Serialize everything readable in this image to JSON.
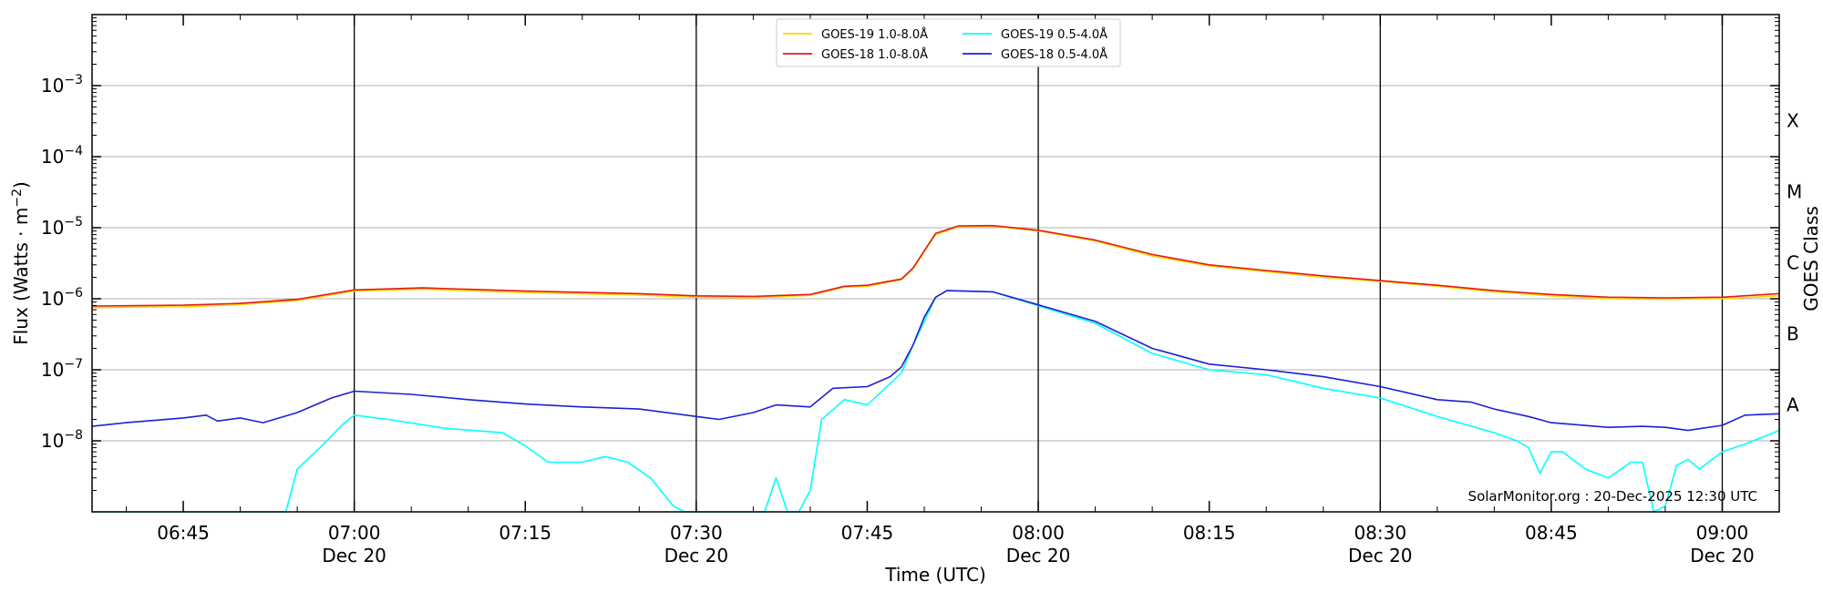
{
  "chart_data": {
    "type": "line",
    "xlabel": "Time (UTC)",
    "ylabel_text": "Flux (Watts · m",
    "ylabel_exp": "−2",
    "ylabel_close": ")",
    "right_label": "GOES Class",
    "credit": "SolarMonitor.org : 20-Dec-2025 12:30 UTC",
    "x_range": [
      "06:37",
      "09:05"
    ],
    "y_range": [
      1e-09,
      0.01
    ],
    "y_scale": "log",
    "y_ticks": [
      {
        "value": 1e-08,
        "base": "10",
        "exp": "−8"
      },
      {
        "value": 1e-07,
        "base": "10",
        "exp": "−7"
      },
      {
        "value": 1e-06,
        "base": "10",
        "exp": "−6"
      },
      {
        "value": 1e-05,
        "base": "10",
        "exp": "−5"
      },
      {
        "value": 0.0001,
        "base": "10",
        "exp": "−4"
      },
      {
        "value": 0.001,
        "base": "10",
        "exp": "−3"
      }
    ],
    "x_ticks": [
      {
        "time": "06:45",
        "label": "06:45",
        "sub": ""
      },
      {
        "time": "07:00",
        "label": "07:00",
        "sub": "Dec 20"
      },
      {
        "time": "07:15",
        "label": "07:15",
        "sub": ""
      },
      {
        "time": "07:30",
        "label": "07:30",
        "sub": "Dec 20"
      },
      {
        "time": "07:45",
        "label": "07:45",
        "sub": ""
      },
      {
        "time": "08:00",
        "label": "08:00",
        "sub": "Dec 20"
      },
      {
        "time": "08:15",
        "label": "08:15",
        "sub": ""
      },
      {
        "time": "08:30",
        "label": "08:30",
        "sub": "Dec 20"
      },
      {
        "time": "08:45",
        "label": "08:45",
        "sub": ""
      },
      {
        "time": "09:00",
        "label": "09:00",
        "sub": "Dec 20"
      }
    ],
    "vertical_lines": [
      "07:00",
      "07:30",
      "08:00",
      "08:30",
      "09:00"
    ],
    "goes_classes": [
      {
        "label": "A",
        "value": 1e-08
      },
      {
        "label": "B",
        "value": 1e-07
      },
      {
        "label": "C",
        "value": 1e-06
      },
      {
        "label": "M",
        "value": 1e-05
      },
      {
        "label": "X",
        "value": 0.0001
      }
    ],
    "grid": "horizontal at major ticks",
    "legend_position": "top-center",
    "series": [
      {
        "name": "GOES-19 1.0-8.0Å",
        "color": "#FFD700",
        "points": [
          [
            "06:37",
            7.5e-07
          ],
          [
            "06:45",
            7.7e-07
          ],
          [
            "06:50",
            8.3e-07
          ],
          [
            "06:55",
            9.4e-07
          ],
          [
            "07:00",
            1.28e-06
          ],
          [
            "07:06",
            1.36e-06
          ],
          [
            "07:15",
            1.22e-06
          ],
          [
            "07:25",
            1.13e-06
          ],
          [
            "07:30",
            1.05e-06
          ],
          [
            "07:35",
            1.03e-06
          ],
          [
            "07:40",
            1.12e-06
          ],
          [
            "07:43",
            1.45e-06
          ],
          [
            "07:45",
            1.5e-06
          ],
          [
            "07:48",
            1.85e-06
          ],
          [
            "07:49",
            2.6e-06
          ],
          [
            "07:51",
            8e-06
          ],
          [
            "07:53",
            1.03e-05
          ],
          [
            "07:56",
            1.05e-05
          ],
          [
            "08:00",
            9e-06
          ],
          [
            "08:05",
            6.5e-06
          ],
          [
            "08:10",
            4e-06
          ],
          [
            "08:15",
            2.9e-06
          ],
          [
            "08:20",
            2.4e-06
          ],
          [
            "08:25",
            2e-06
          ],
          [
            "08:30",
            1.75e-06
          ],
          [
            "08:35",
            1.5e-06
          ],
          [
            "08:40",
            1.25e-06
          ],
          [
            "08:45",
            1.1e-06
          ],
          [
            "08:50",
            1e-06
          ],
          [
            "08:55",
            9.8e-07
          ],
          [
            "09:00",
            1e-06
          ],
          [
            "09:05",
            1.1e-06
          ]
        ]
      },
      {
        "name": "GOES-18 1.0-8.0Å",
        "color": "#E31A1C",
        "points": [
          [
            "06:37",
            7.9e-07
          ],
          [
            "06:45",
            8.1e-07
          ],
          [
            "06:50",
            8.6e-07
          ],
          [
            "06:55",
            9.8e-07
          ],
          [
            "07:00",
            1.33e-06
          ],
          [
            "07:06",
            1.42e-06
          ],
          [
            "07:15",
            1.28e-06
          ],
          [
            "07:25",
            1.18e-06
          ],
          [
            "07:30",
            1.1e-06
          ],
          [
            "07:35",
            1.08e-06
          ],
          [
            "07:40",
            1.15e-06
          ],
          [
            "07:43",
            1.5e-06
          ],
          [
            "07:45",
            1.55e-06
          ],
          [
            "07:48",
            1.9e-06
          ],
          [
            "07:49",
            2.7e-06
          ],
          [
            "07:51",
            8.3e-06
          ],
          [
            "07:53",
            1.06e-05
          ],
          [
            "07:56",
            1.07e-05
          ],
          [
            "08:00",
            9.2e-06
          ],
          [
            "08:05",
            6.7e-06
          ],
          [
            "08:10",
            4.2e-06
          ],
          [
            "08:15",
            3e-06
          ],
          [
            "08:20",
            2.5e-06
          ],
          [
            "08:25",
            2.1e-06
          ],
          [
            "08:30",
            1.8e-06
          ],
          [
            "08:35",
            1.55e-06
          ],
          [
            "08:40",
            1.3e-06
          ],
          [
            "08:45",
            1.15e-06
          ],
          [
            "08:50",
            1.05e-06
          ],
          [
            "08:55",
            1.03e-06
          ],
          [
            "09:00",
            1.05e-06
          ],
          [
            "09:05",
            1.18e-06
          ]
        ]
      },
      {
        "name": "GOES-19 0.5-4.0Å",
        "color": "#00FFFF",
        "points": [
          [
            "06:37",
            1e-09
          ],
          [
            "06:54",
            1e-09
          ],
          [
            "06:55",
            4e-09
          ],
          [
            "06:57",
            8e-09
          ],
          [
            "06:59",
            1.7e-08
          ],
          [
            "07:00",
            2.3e-08
          ],
          [
            "07:03",
            2e-08
          ],
          [
            "07:08",
            1.5e-08
          ],
          [
            "07:13",
            1.3e-08
          ],
          [
            "07:15",
            8.5e-09
          ],
          [
            "07:17",
            5e-09
          ],
          [
            "07:20",
            5e-09
          ],
          [
            "07:22",
            6e-09
          ],
          [
            "07:24",
            5e-09
          ],
          [
            "07:26",
            3e-09
          ],
          [
            "07:28",
            1.2e-09
          ],
          [
            "07:29",
            1e-09
          ],
          [
            "07:36",
            1e-09
          ],
          [
            "07:37",
            3e-09
          ],
          [
            "07:38",
            1e-09
          ],
          [
            "07:39",
            1e-09
          ],
          [
            "07:40",
            2e-09
          ],
          [
            "07:41",
            2e-08
          ],
          [
            "07:43",
            3.8e-08
          ],
          [
            "07:45",
            3.2e-08
          ],
          [
            "07:48",
            9e-08
          ],
          [
            "07:49",
            2.2e-07
          ],
          [
            "07:51",
            1.05e-06
          ],
          [
            "07:52",
            1.3e-06
          ],
          [
            "07:56",
            1.25e-06
          ],
          [
            "08:00",
            8e-07
          ],
          [
            "08:05",
            4.5e-07
          ],
          [
            "08:10",
            1.7e-07
          ],
          [
            "08:15",
            1e-07
          ],
          [
            "08:20",
            8.5e-08
          ],
          [
            "08:25",
            5.5e-08
          ],
          [
            "08:30",
            4e-08
          ],
          [
            "08:35",
            2.2e-08
          ],
          [
            "08:40",
            1.3e-08
          ],
          [
            "08:42",
            1e-08
          ],
          [
            "08:43",
            8e-09
          ],
          [
            "08:44",
            3.5e-09
          ],
          [
            "08:45",
            7e-09
          ],
          [
            "08:46",
            7e-09
          ],
          [
            "08:48",
            4e-09
          ],
          [
            "08:50",
            3e-09
          ],
          [
            "08:52",
            5e-09
          ],
          [
            "08:53",
            5e-09
          ],
          [
            "08:54",
            1e-09
          ],
          [
            "08:55",
            1.2e-09
          ],
          [
            "08:56",
            4.5e-09
          ],
          [
            "08:57",
            5.5e-09
          ],
          [
            "08:58",
            4e-09
          ],
          [
            "09:00",
            7e-09
          ],
          [
            "09:02",
            9e-09
          ],
          [
            "09:05",
            1.4e-08
          ]
        ]
      },
      {
        "name": "GOES-18 0.5-4.0Å",
        "color": "#1F1FD6",
        "points": [
          [
            "06:37",
            1.6e-08
          ],
          [
            "06:40",
            1.8e-08
          ],
          [
            "06:45",
            2.1e-08
          ],
          [
            "06:47",
            2.3e-08
          ],
          [
            "06:48",
            1.9e-08
          ],
          [
            "06:50",
            2.1e-08
          ],
          [
            "06:52",
            1.8e-08
          ],
          [
            "06:55",
            2.5e-08
          ],
          [
            "06:58",
            4e-08
          ],
          [
            "07:00",
            5e-08
          ],
          [
            "07:05",
            4.5e-08
          ],
          [
            "07:10",
            3.8e-08
          ],
          [
            "07:15",
            3.3e-08
          ],
          [
            "07:20",
            3e-08
          ],
          [
            "07:25",
            2.8e-08
          ],
          [
            "07:30",
            2.2e-08
          ],
          [
            "07:32",
            2e-08
          ],
          [
            "07:35",
            2.5e-08
          ],
          [
            "07:37",
            3.2e-08
          ],
          [
            "07:40",
            3e-08
          ],
          [
            "07:42",
            5.5e-08
          ],
          [
            "07:45",
            5.8e-08
          ],
          [
            "07:47",
            8e-08
          ],
          [
            "07:48",
            1.1e-07
          ],
          [
            "07:49",
            2.2e-07
          ],
          [
            "07:50",
            5.5e-07
          ],
          [
            "07:51",
            1.05e-06
          ],
          [
            "07:52",
            1.3e-06
          ],
          [
            "07:56",
            1.25e-06
          ],
          [
            "08:00",
            8.2e-07
          ],
          [
            "08:05",
            4.8e-07
          ],
          [
            "08:10",
            2e-07
          ],
          [
            "08:15",
            1.2e-07
          ],
          [
            "08:20",
            1e-07
          ],
          [
            "08:25",
            8e-08
          ],
          [
            "08:30",
            5.8e-08
          ],
          [
            "08:35",
            3.8e-08
          ],
          [
            "08:38",
            3.5e-08
          ],
          [
            "08:40",
            2.8e-08
          ],
          [
            "08:43",
            2.2e-08
          ],
          [
            "08:45",
            1.8e-08
          ],
          [
            "08:50",
            1.55e-08
          ],
          [
            "08:53",
            1.6e-08
          ],
          [
            "08:55",
            1.55e-08
          ],
          [
            "08:57",
            1.4e-08
          ],
          [
            "09:00",
            1.65e-08
          ],
          [
            "09:02",
            2.3e-08
          ],
          [
            "09:05",
            2.4e-08
          ]
        ]
      }
    ]
  }
}
